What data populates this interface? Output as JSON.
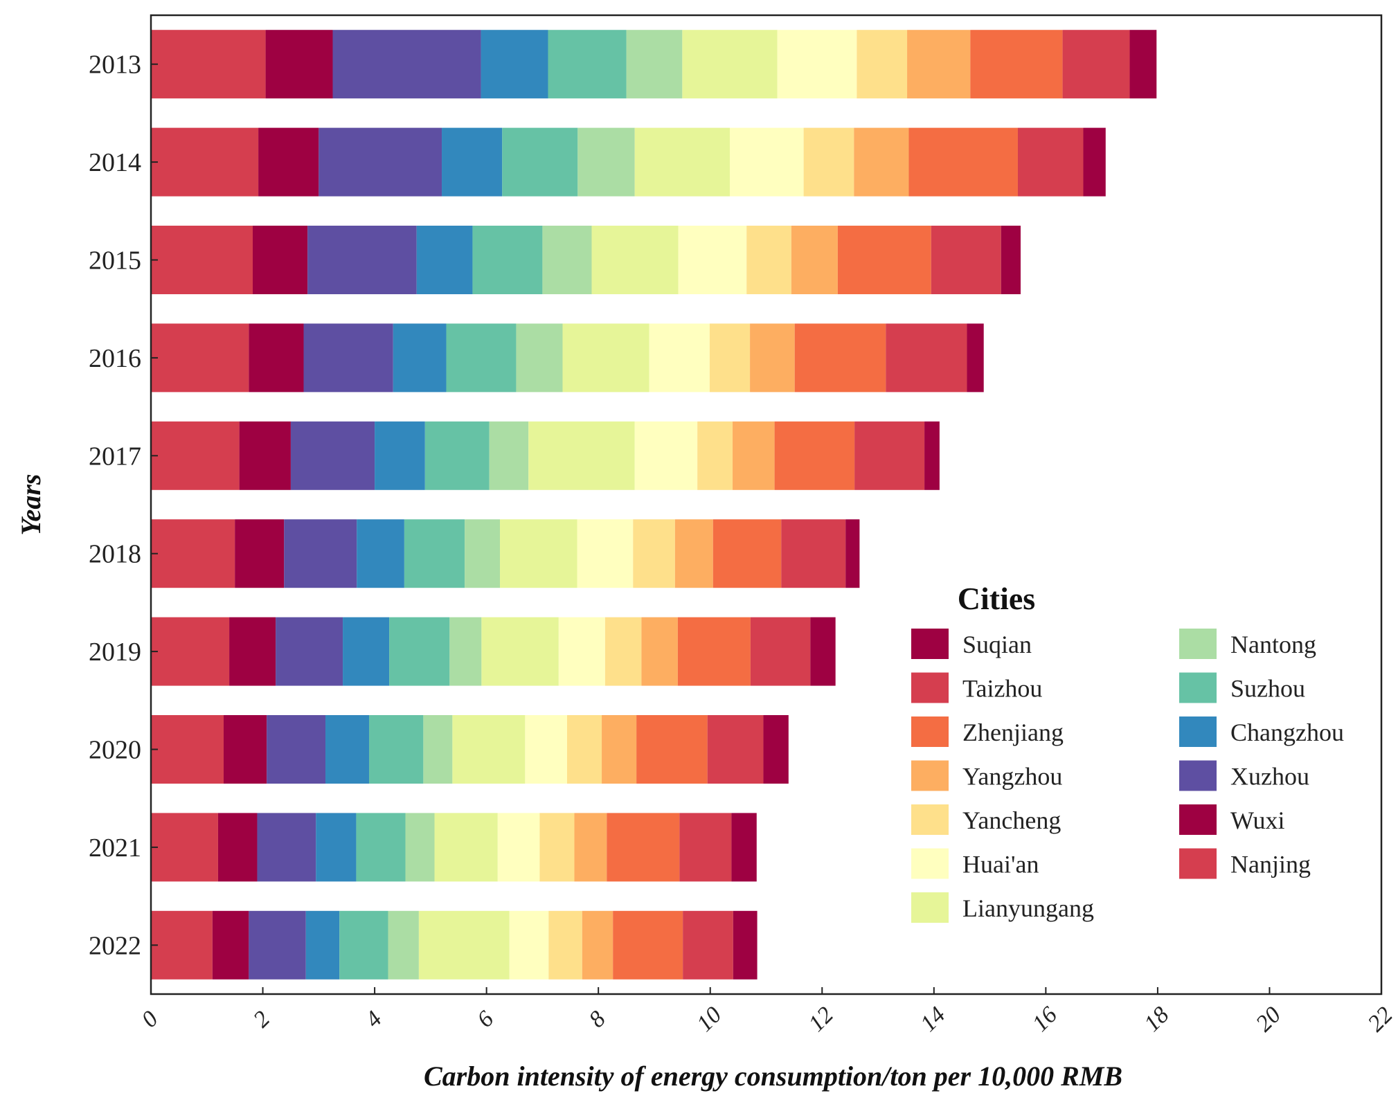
{
  "chart_data": {
    "type": "bar",
    "orientation": "horizontal",
    "stacked": true,
    "xlabel": "Carbon intensity of energy consumption/ton per 10,000 RMB",
    "ylabel": "Years",
    "xlim": [
      0,
      22
    ],
    "x_ticks": [
      "0",
      "2",
      "4",
      "6",
      "8",
      "10",
      "12",
      "14",
      "16",
      "18",
      "20",
      "22"
    ],
    "grid": false,
    "categories": [
      "2013",
      "2014",
      "2015",
      "2016",
      "2017",
      "2018",
      "2019",
      "2020",
      "2021",
      "2022"
    ],
    "legend": {
      "title": "Cities",
      "placement": "right",
      "columns": 2
    },
    "series": [
      {
        "name": "Nanjing",
        "color": "#d53e4f",
        "values": [
          2.05,
          1.92,
          1.82,
          1.75,
          1.58,
          1.5,
          1.4,
          1.3,
          1.2,
          1.1
        ]
      },
      {
        "name": "Wuxi",
        "color": "#9e0142",
        "values": [
          1.2,
          1.08,
          0.98,
          0.98,
          0.92,
          0.88,
          0.83,
          0.77,
          0.7,
          0.65
        ]
      },
      {
        "name": "Xuzhou",
        "color": "#5e4fa2",
        "values": [
          2.65,
          2.2,
          1.95,
          1.6,
          1.5,
          1.3,
          1.2,
          1.05,
          1.05,
          1.02
        ]
      },
      {
        "name": "Changzhou",
        "color": "#3288bd",
        "values": [
          1.2,
          1.08,
          1.0,
          0.95,
          0.9,
          0.85,
          0.83,
          0.78,
          0.72,
          0.6
        ]
      },
      {
        "name": "Suzhou",
        "color": "#66c2a5",
        "values": [
          1.4,
          1.35,
          1.25,
          1.25,
          1.15,
          1.08,
          1.08,
          0.97,
          0.88,
          0.87
        ]
      },
      {
        "name": "Nantong",
        "color": "#abdda4",
        "values": [
          1.0,
          1.02,
          0.88,
          0.83,
          0.7,
          0.63,
          0.57,
          0.52,
          0.52,
          0.55
        ]
      },
      {
        "name": "Lianyungang",
        "color": "#e6f598",
        "values": [
          1.7,
          1.7,
          1.55,
          1.55,
          1.9,
          1.38,
          1.38,
          1.3,
          1.13,
          1.62
        ]
      },
      {
        "name": "Huai'an",
        "color": "#ffffbf",
        "values": [
          1.42,
          1.32,
          1.22,
          1.08,
          1.12,
          1.0,
          0.83,
          0.75,
          0.75,
          0.7
        ]
      },
      {
        "name": "Yancheng",
        "color": "#fee08b",
        "values": [
          0.9,
          0.9,
          0.8,
          0.72,
          0.63,
          0.75,
          0.65,
          0.62,
          0.62,
          0.6
        ]
      },
      {
        "name": "Yangzhou",
        "color": "#fdae61",
        "values": [
          1.13,
          0.98,
          0.83,
          0.8,
          0.75,
          0.68,
          0.65,
          0.62,
          0.58,
          0.55
        ]
      },
      {
        "name": "Zhenjiang",
        "color": "#f46d43",
        "values": [
          1.65,
          1.95,
          1.67,
          1.63,
          1.43,
          1.22,
          1.3,
          1.27,
          1.3,
          1.25
        ]
      },
      {
        "name": "Taizhou",
        "color": "#d53e4f",
        "values": [
          1.2,
          1.17,
          1.25,
          1.45,
          1.25,
          1.15,
          1.07,
          1.0,
          0.93,
          0.9
        ]
      },
      {
        "name": "Suqian",
        "color": "#9e0142",
        "values": [
          0.48,
          0.4,
          0.35,
          0.3,
          0.27,
          0.25,
          0.45,
          0.45,
          0.45,
          0.43
        ]
      }
    ],
    "legend_order": [
      "Suqian",
      "Taizhou",
      "Zhenjiang",
      "Yangzhou",
      "Yancheng",
      "Huai'an",
      "Lianyungang",
      "Nantong",
      "Suzhou",
      "Changzhou",
      "Xuzhou",
      "Wuxi",
      "Nanjing"
    ]
  }
}
